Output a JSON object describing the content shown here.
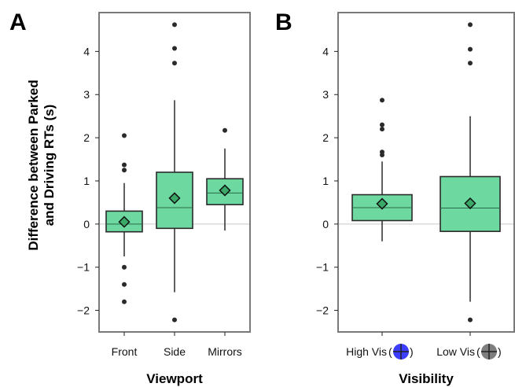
{
  "y_axis_title": [
    "Difference between Parked",
    "and Driving RTs (s)"
  ],
  "colors": {
    "box_fill": "#6dd9a0",
    "mean_marker": "#3aa866",
    "high_vis_icon": "#3333ff",
    "low_vis_icon": "#777777"
  },
  "chart_data": [
    {
      "panel": "A",
      "type": "box",
      "xlabel": "Viewport",
      "ylabel": "Difference between Parked and Driving RTs (s)",
      "ylim": [
        -2.5,
        4.9
      ],
      "yticks": [
        -2,
        -1,
        0,
        1,
        2,
        3,
        4
      ],
      "ytick_labels": [
        "−2",
        "−1",
        "0",
        "1",
        "2",
        "3",
        "4"
      ],
      "reference_line_y": 0,
      "grid": false,
      "categories": [
        "Front",
        "Side",
        "Mirrors"
      ],
      "boxes": [
        {
          "category": "Front",
          "whisker_low": -0.75,
          "q1": -0.18,
          "median": 0.0,
          "q3": 0.3,
          "whisker_high": 0.95,
          "mean": 0.05,
          "outliers": [
            2.05,
            1.37,
            1.25,
            -1.0,
            -1.4,
            -1.8
          ]
        },
        {
          "category": "Side",
          "whisker_low": -1.58,
          "q1": -0.1,
          "median": 0.38,
          "q3": 1.2,
          "whisker_high": 2.87,
          "mean": 0.6,
          "outliers": [
            4.62,
            4.07,
            3.73,
            -2.22
          ]
        },
        {
          "category": "Mirrors",
          "whisker_low": -0.15,
          "q1": 0.45,
          "median": 0.72,
          "q3": 1.05,
          "whisker_high": 1.75,
          "mean": 0.78,
          "outliers": [
            2.17
          ]
        }
      ]
    },
    {
      "panel": "B",
      "type": "box",
      "xlabel": "Visibility",
      "ylabel": "",
      "ylim": [
        -2.5,
        4.9
      ],
      "yticks": [
        -2,
        -1,
        0,
        1,
        2,
        3,
        4
      ],
      "ytick_labels": [
        "−2",
        "−1",
        "0",
        "1",
        "2",
        "3",
        "4"
      ],
      "reference_line_y": 0,
      "grid": false,
      "categories": [
        "High Vis",
        "Low Vis"
      ],
      "category_icons": [
        "high-vis-crosshair-icon",
        "low-vis-crosshair-icon"
      ],
      "boxes": [
        {
          "category": "High Vis",
          "whisker_low": -0.4,
          "q1": 0.08,
          "median": 0.38,
          "q3": 0.68,
          "whisker_high": 1.45,
          "mean": 0.47,
          "outliers": [
            2.87,
            2.3,
            2.2,
            1.67,
            1.6
          ]
        },
        {
          "category": "Low Vis",
          "whisker_low": -1.8,
          "q1": -0.17,
          "median": 0.37,
          "q3": 1.1,
          "whisker_high": 2.5,
          "mean": 0.48,
          "outliers": [
            4.62,
            4.05,
            3.73,
            -2.22
          ]
        }
      ]
    }
  ]
}
